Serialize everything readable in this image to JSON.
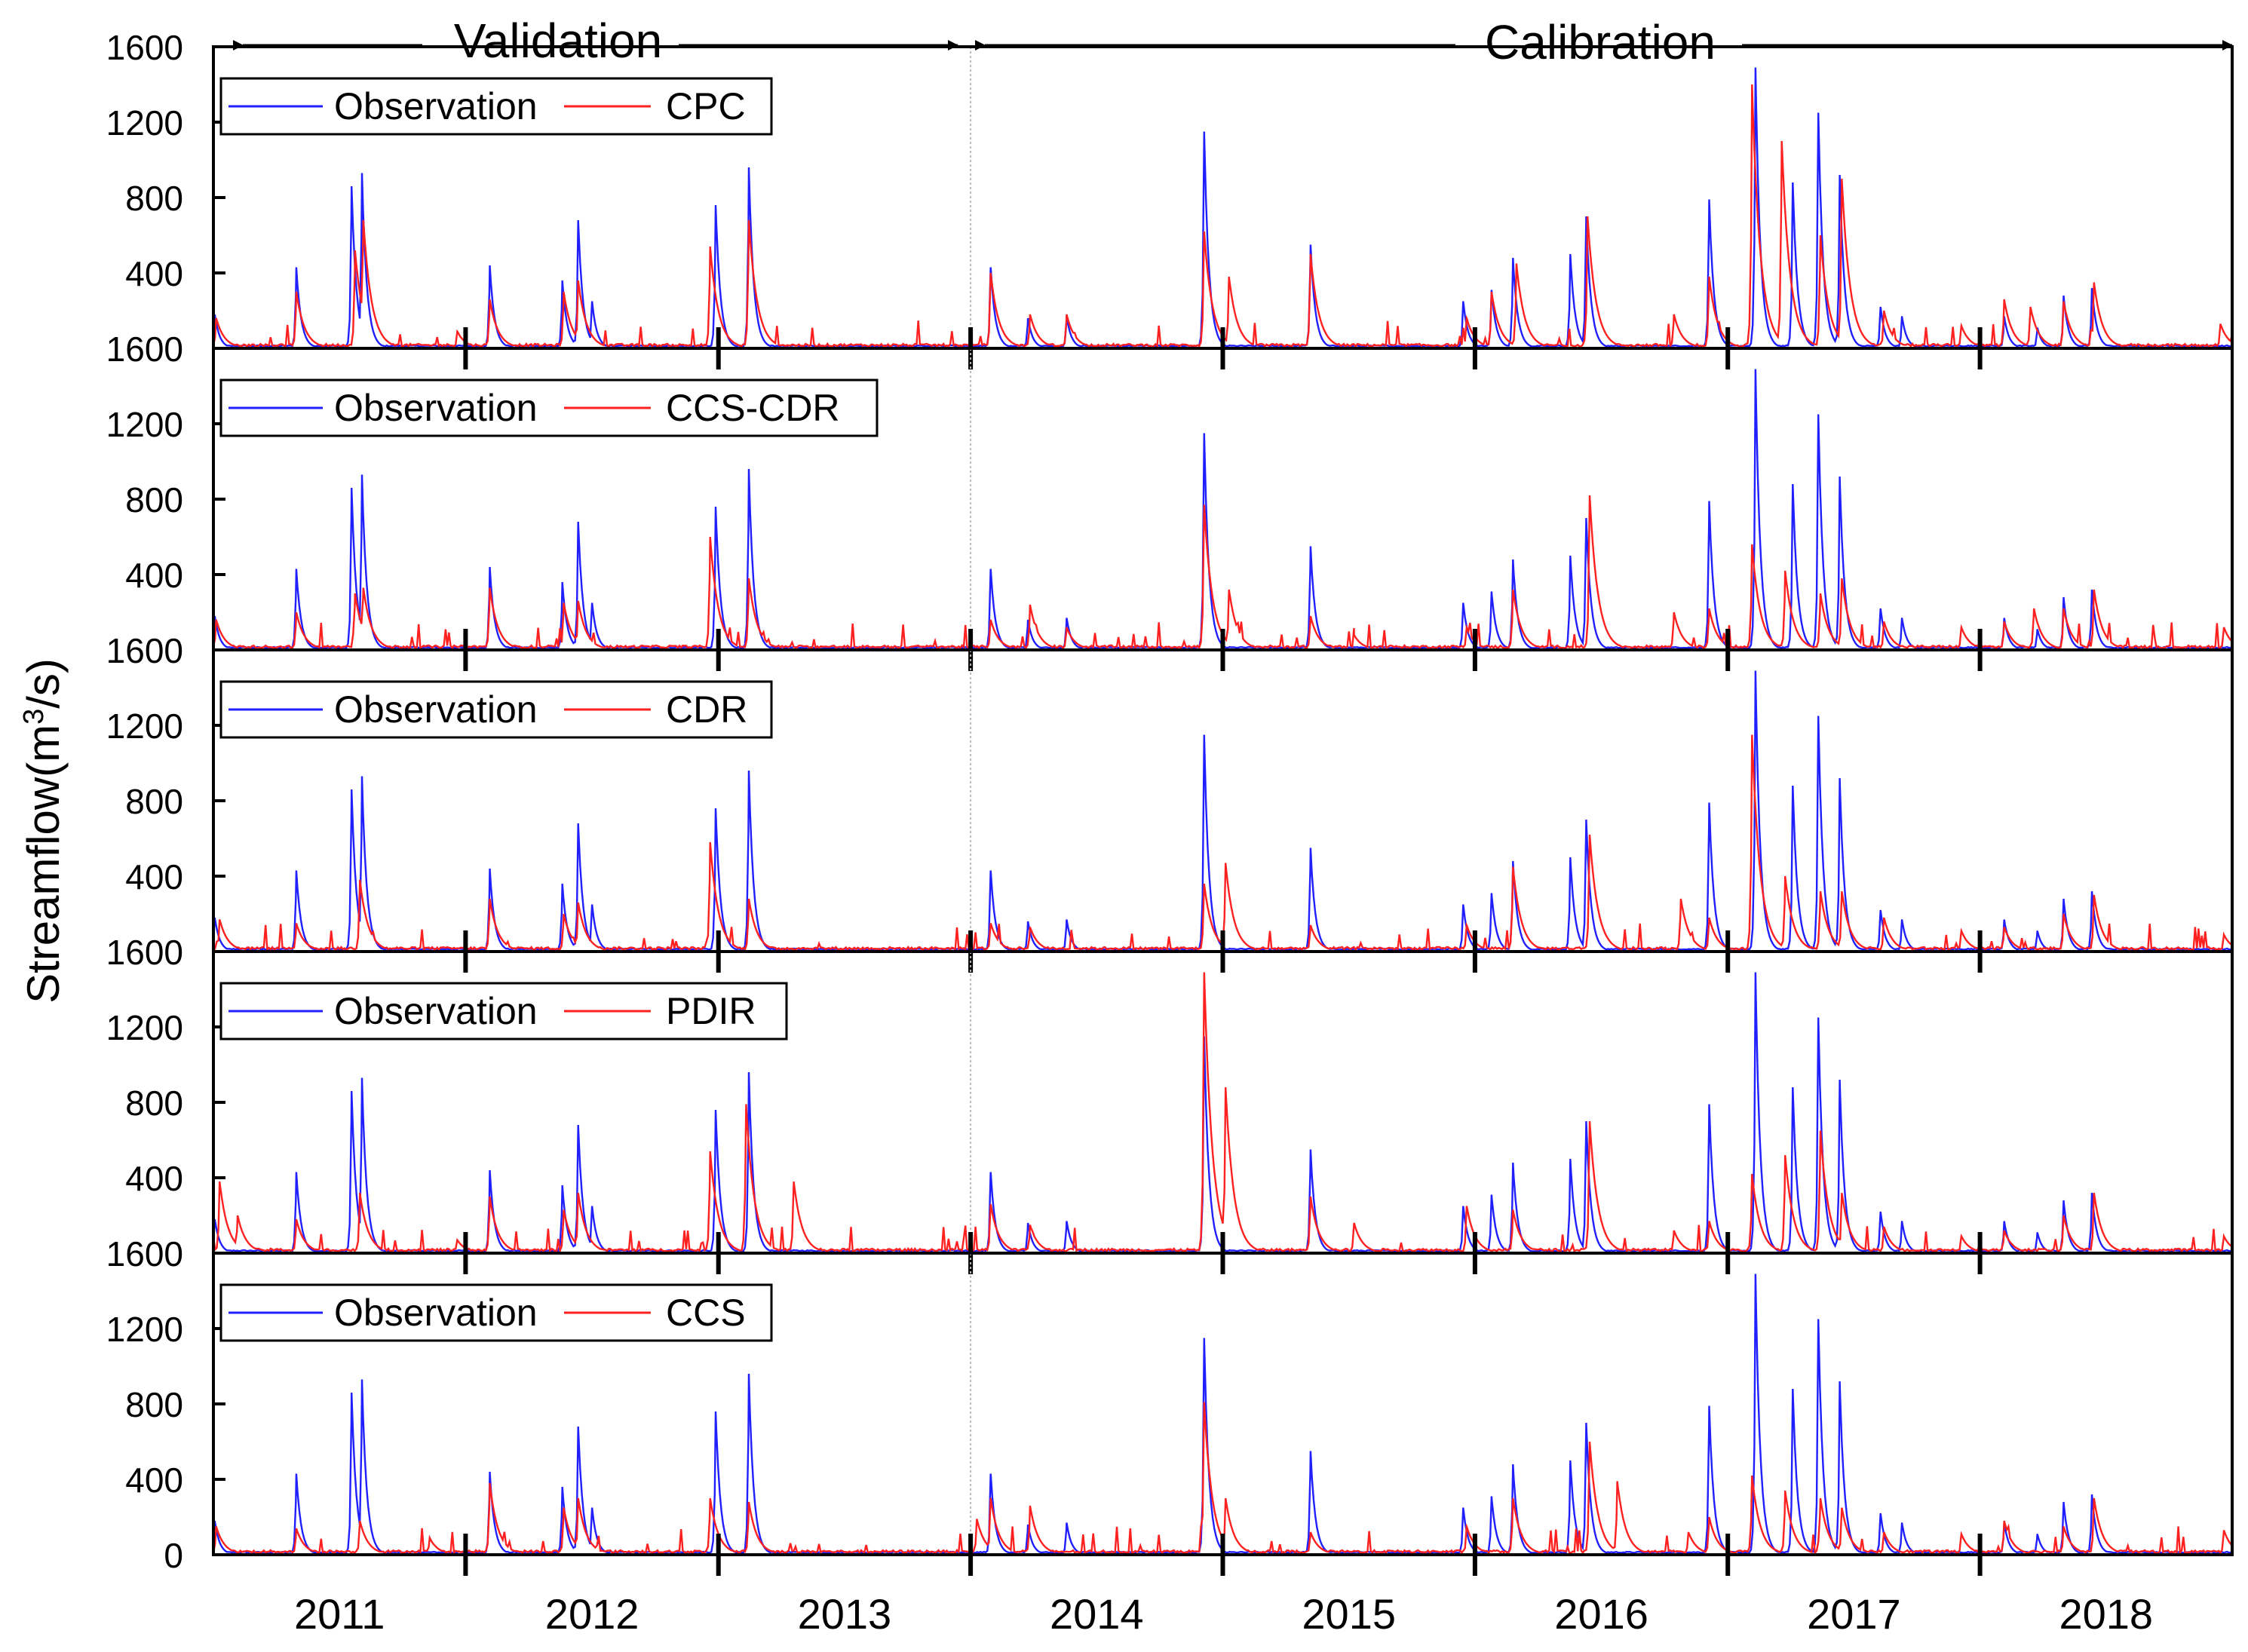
{
  "chart_data": {
    "type": "line",
    "ylabel": "Streamflow(m³/s)",
    "ylabel_base": "Streamflow(m",
    "ylabel_sup": "3",
    "ylabel_end": "/s)",
    "ylim": [
      0,
      1600
    ],
    "y_ticks": [
      "0",
      "400",
      "800",
      "1200",
      "1600"
    ],
    "year_labels": [
      "2011",
      "2012",
      "2013",
      "2014",
      "2015",
      "2016",
      "2017",
      "2018"
    ],
    "x_range": [
      "2011-01-01",
      "2019-01-01"
    ],
    "periods": [
      {
        "label": "Validation",
        "start": "2011-01-01",
        "end": "2014-01-01"
      },
      {
        "label": "Calibration",
        "start": "2014-01-01",
        "end": "2019-01-01"
      }
    ],
    "colors": {
      "observation": "#1f1fff",
      "simulation": "#ff2020"
    },
    "observation_peaks": [
      {
        "date": "2011-01-03",
        "value": 180
      },
      {
        "date": "2011-05-01",
        "value": 430
      },
      {
        "date": "2011-07-20",
        "value": 860
      },
      {
        "date": "2011-08-04",
        "value": 930
      },
      {
        "date": "2012-02-05",
        "value": 440
      },
      {
        "date": "2012-05-20",
        "value": 360
      },
      {
        "date": "2012-06-12",
        "value": 680
      },
      {
        "date": "2012-07-02",
        "value": 250
      },
      {
        "date": "2012-12-28",
        "value": 760
      },
      {
        "date": "2013-02-14",
        "value": 960
      },
      {
        "date": "2014-01-30",
        "value": 430
      },
      {
        "date": "2014-03-25",
        "value": 160
      },
      {
        "date": "2014-05-20",
        "value": 170
      },
      {
        "date": "2014-12-05",
        "value": 1150
      },
      {
        "date": "2015-05-08",
        "value": 550
      },
      {
        "date": "2015-12-15",
        "value": 250
      },
      {
        "date": "2016-01-25",
        "value": 310
      },
      {
        "date": "2016-02-25",
        "value": 480
      },
      {
        "date": "2016-05-18",
        "value": 500
      },
      {
        "date": "2016-06-10",
        "value": 700
      },
      {
        "date": "2016-12-05",
        "value": 790
      },
      {
        "date": "2017-02-10",
        "value": 1490
      },
      {
        "date": "2017-04-05",
        "value": 880
      },
      {
        "date": "2017-05-12",
        "value": 1250
      },
      {
        "date": "2017-06-12",
        "value": 920
      },
      {
        "date": "2017-08-10",
        "value": 220
      },
      {
        "date": "2017-09-10",
        "value": 170
      },
      {
        "date": "2018-02-05",
        "value": 170
      },
      {
        "date": "2018-03-25",
        "value": 110
      },
      {
        "date": "2018-05-02",
        "value": 280
      },
      {
        "date": "2018-06-12",
        "value": 320
      }
    ],
    "panels": [
      {
        "legend": {
          "observation": "Observation",
          "simulation": "CPC"
        },
        "simulation_peaks": [
          {
            "date": "2011-01-05",
            "value": 160
          },
          {
            "date": "2011-05-01",
            "value": 300
          },
          {
            "date": "2011-07-25",
            "value": 520
          },
          {
            "date": "2011-08-06",
            "value": 680
          },
          {
            "date": "2011-12-20",
            "value": 90
          },
          {
            "date": "2012-02-05",
            "value": 260
          },
          {
            "date": "2012-05-22",
            "value": 300
          },
          {
            "date": "2012-06-12",
            "value": 360
          },
          {
            "date": "2012-12-20",
            "value": 540
          },
          {
            "date": "2013-02-14",
            "value": 680
          },
          {
            "date": "2014-01-30",
            "value": 400
          },
          {
            "date": "2014-03-28",
            "value": 180
          },
          {
            "date": "2014-05-20",
            "value": 180
          },
          {
            "date": "2014-12-05",
            "value": 620
          },
          {
            "date": "2015-01-10",
            "value": 380
          },
          {
            "date": "2015-05-08",
            "value": 500
          },
          {
            "date": "2015-12-20",
            "value": 160
          },
          {
            "date": "2016-01-25",
            "value": 300
          },
          {
            "date": "2016-03-01",
            "value": 450
          },
          {
            "date": "2016-06-12",
            "value": 700
          },
          {
            "date": "2016-10-15",
            "value": 180
          },
          {
            "date": "2016-12-05",
            "value": 380
          },
          {
            "date": "2017-02-05",
            "value": 1400
          },
          {
            "date": "2017-03-20",
            "value": 1100
          },
          {
            "date": "2017-05-15",
            "value": 600
          },
          {
            "date": "2017-06-15",
            "value": 900
          },
          {
            "date": "2017-08-15",
            "value": 200
          },
          {
            "date": "2017-12-05",
            "value": 120
          },
          {
            "date": "2018-02-05",
            "value": 260
          },
          {
            "date": "2018-03-15",
            "value": 220
          },
          {
            "date": "2018-05-02",
            "value": 250
          },
          {
            "date": "2018-06-15",
            "value": 350
          },
          {
            "date": "2018-12-15",
            "value": 130
          }
        ]
      },
      {
        "legend": {
          "observation": "Observation",
          "simulation": "CCS-CDR"
        },
        "simulation_peaks": [
          {
            "date": "2011-01-05",
            "value": 160
          },
          {
            "date": "2011-05-01",
            "value": 200
          },
          {
            "date": "2011-07-25",
            "value": 300
          },
          {
            "date": "2011-08-06",
            "value": 330
          },
          {
            "date": "2012-02-05",
            "value": 330
          },
          {
            "date": "2012-05-22",
            "value": 250
          },
          {
            "date": "2012-06-12",
            "value": 260
          },
          {
            "date": "2012-12-20",
            "value": 600
          },
          {
            "date": "2013-02-14",
            "value": 380
          },
          {
            "date": "2014-01-30",
            "value": 160
          },
          {
            "date": "2014-03-28",
            "value": 240
          },
          {
            "date": "2014-05-20",
            "value": 120
          },
          {
            "date": "2014-12-05",
            "value": 770
          },
          {
            "date": "2015-01-10",
            "value": 320
          },
          {
            "date": "2015-05-08",
            "value": 180
          },
          {
            "date": "2015-07-10",
            "value": 80
          },
          {
            "date": "2015-12-20",
            "value": 120
          },
          {
            "date": "2016-02-25",
            "value": 320
          },
          {
            "date": "2016-06-15",
            "value": 820
          },
          {
            "date": "2016-10-15",
            "value": 200
          },
          {
            "date": "2016-12-05",
            "value": 220
          },
          {
            "date": "2017-02-05",
            "value": 560
          },
          {
            "date": "2017-03-25",
            "value": 420
          },
          {
            "date": "2017-05-15",
            "value": 300
          },
          {
            "date": "2017-06-15",
            "value": 380
          },
          {
            "date": "2017-08-15",
            "value": 150
          },
          {
            "date": "2017-12-05",
            "value": 120
          },
          {
            "date": "2018-02-05",
            "value": 150
          },
          {
            "date": "2018-03-20",
            "value": 220
          },
          {
            "date": "2018-05-02",
            "value": 220
          },
          {
            "date": "2018-06-15",
            "value": 320
          },
          {
            "date": "2018-12-20",
            "value": 120
          }
        ]
      },
      {
        "legend": {
          "observation": "Observation",
          "simulation": "CDR"
        },
        "simulation_peaks": [
          {
            "date": "2011-01-10",
            "value": 170
          },
          {
            "date": "2011-05-01",
            "value": 150
          },
          {
            "date": "2011-08-01",
            "value": 380
          },
          {
            "date": "2012-02-05",
            "value": 280
          },
          {
            "date": "2012-05-22",
            "value": 200
          },
          {
            "date": "2012-06-12",
            "value": 260
          },
          {
            "date": "2012-12-20",
            "value": 580
          },
          {
            "date": "2013-02-14",
            "value": 280
          },
          {
            "date": "2014-01-30",
            "value": 150
          },
          {
            "date": "2014-03-28",
            "value": 130
          },
          {
            "date": "2014-12-05",
            "value": 360
          },
          {
            "date": "2015-01-05",
            "value": 470
          },
          {
            "date": "2015-05-08",
            "value": 140
          },
          {
            "date": "2015-12-20",
            "value": 140
          },
          {
            "date": "2016-02-25",
            "value": 450
          },
          {
            "date": "2016-06-15",
            "value": 620
          },
          {
            "date": "2016-10-25",
            "value": 280
          },
          {
            "date": "2016-12-05",
            "value": 180
          },
          {
            "date": "2017-02-05",
            "value": 1150
          },
          {
            "date": "2017-03-25",
            "value": 400
          },
          {
            "date": "2017-05-15",
            "value": 320
          },
          {
            "date": "2017-06-15",
            "value": 320
          },
          {
            "date": "2017-08-15",
            "value": 180
          },
          {
            "date": "2017-12-05",
            "value": 110
          },
          {
            "date": "2018-02-05",
            "value": 130
          },
          {
            "date": "2018-05-02",
            "value": 200
          },
          {
            "date": "2018-06-15",
            "value": 300
          },
          {
            "date": "2018-12-20",
            "value": 90
          }
        ]
      },
      {
        "legend": {
          "observation": "Observation",
          "simulation": "PDIR"
        },
        "simulation_peaks": [
          {
            "date": "2011-01-10",
            "value": 380
          },
          {
            "date": "2011-02-05",
            "value": 200
          },
          {
            "date": "2011-05-01",
            "value": 180
          },
          {
            "date": "2011-08-01",
            "value": 320
          },
          {
            "date": "2011-12-20",
            "value": 70
          },
          {
            "date": "2012-02-05",
            "value": 300
          },
          {
            "date": "2012-05-22",
            "value": 230
          },
          {
            "date": "2012-06-12",
            "value": 320
          },
          {
            "date": "2012-12-20",
            "value": 540
          },
          {
            "date": "2013-02-10",
            "value": 790
          },
          {
            "date": "2013-04-20",
            "value": 380
          },
          {
            "date": "2014-01-30",
            "value": 260
          },
          {
            "date": "2014-03-28",
            "value": 150
          },
          {
            "date": "2014-12-05",
            "value": 1490
          },
          {
            "date": "2015-01-05",
            "value": 880
          },
          {
            "date": "2015-05-08",
            "value": 300
          },
          {
            "date": "2015-07-10",
            "value": 160
          },
          {
            "date": "2015-12-20",
            "value": 250
          },
          {
            "date": "2016-02-25",
            "value": 230
          },
          {
            "date": "2016-06-15",
            "value": 700
          },
          {
            "date": "2016-10-15",
            "value": 120
          },
          {
            "date": "2016-12-05",
            "value": 170
          },
          {
            "date": "2017-02-05",
            "value": 420
          },
          {
            "date": "2017-03-25",
            "value": 520
          },
          {
            "date": "2017-05-15",
            "value": 650
          },
          {
            "date": "2017-06-15",
            "value": 320
          },
          {
            "date": "2017-08-15",
            "value": 140
          },
          {
            "date": "2017-12-05",
            "value": 90
          },
          {
            "date": "2018-02-05",
            "value": 120
          },
          {
            "date": "2018-05-02",
            "value": 200
          },
          {
            "date": "2018-06-15",
            "value": 320
          },
          {
            "date": "2018-12-20",
            "value": 90
          }
        ]
      },
      {
        "legend": {
          "observation": "Observation",
          "simulation": "CCS"
        },
        "simulation_peaks": [
          {
            "date": "2011-01-05",
            "value": 150
          },
          {
            "date": "2011-05-01",
            "value": 140
          },
          {
            "date": "2011-08-01",
            "value": 180
          },
          {
            "date": "2011-11-10",
            "value": 90
          },
          {
            "date": "2012-02-05",
            "value": 380
          },
          {
            "date": "2012-05-22",
            "value": 250
          },
          {
            "date": "2012-06-12",
            "value": 300
          },
          {
            "date": "2012-12-20",
            "value": 300
          },
          {
            "date": "2013-02-14",
            "value": 280
          },
          {
            "date": "2014-01-10",
            "value": 190
          },
          {
            "date": "2014-01-30",
            "value": 300
          },
          {
            "date": "2014-03-28",
            "value": 260
          },
          {
            "date": "2014-12-05",
            "value": 810
          },
          {
            "date": "2015-01-05",
            "value": 300
          },
          {
            "date": "2015-05-08",
            "value": 120
          },
          {
            "date": "2015-12-20",
            "value": 150
          },
          {
            "date": "2016-02-25",
            "value": 300
          },
          {
            "date": "2016-06-15",
            "value": 600
          },
          {
            "date": "2016-07-25",
            "value": 390
          },
          {
            "date": "2016-11-05",
            "value": 120
          },
          {
            "date": "2016-12-05",
            "value": 200
          },
          {
            "date": "2017-02-05",
            "value": 420
          },
          {
            "date": "2017-03-25",
            "value": 340
          },
          {
            "date": "2017-05-15",
            "value": 300
          },
          {
            "date": "2017-06-15",
            "value": 250
          },
          {
            "date": "2017-08-15",
            "value": 120
          },
          {
            "date": "2017-12-05",
            "value": 110
          },
          {
            "date": "2018-02-05",
            "value": 180
          },
          {
            "date": "2018-05-02",
            "value": 150
          },
          {
            "date": "2018-06-15",
            "value": 300
          },
          {
            "date": "2018-12-20",
            "value": 130
          }
        ]
      }
    ]
  }
}
